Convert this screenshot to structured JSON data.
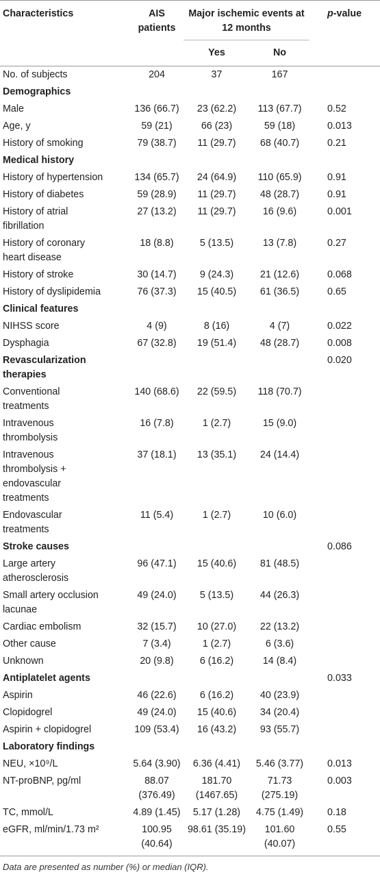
{
  "header": {
    "characteristics": "Characteristics",
    "ais": "AIS patients",
    "events": [
      "Major ischemic events at",
      "12 months"
    ],
    "yes": "Yes",
    "no": "No",
    "p_value": [
      "p",
      "-value"
    ]
  },
  "table": {
    "sections": [
      {
        "rows": [
          [
            "No. of subjects",
            "204",
            "37",
            "167"
          ]
        ]
      },
      {
        "title": "Demographics",
        "rows": [
          [
            "Male",
            "136 (66.7)",
            "23 (62.2)",
            "113 (67.7)",
            "0.52"
          ],
          [
            "Age, y",
            "59 (21)",
            "66 (23)",
            "59 (18)",
            "0.013"
          ],
          [
            "History of smoking",
            "79 (38.7)",
            "11 (29.7)",
            "68 (40.7)",
            "0.21"
          ]
        ]
      },
      {
        "title": "Medical history",
        "rows": [
          [
            "History of hypertension",
            "134 (65.7)",
            "24 (64.9)",
            "110 (65.9)",
            "0.91"
          ],
          [
            "History of diabetes",
            "59 (28.9)",
            "11 (29.7)",
            "48 (28.7)",
            "0.91"
          ],
          [
            [
              "History of atrial",
              "fibrillation"
            ],
            "27 (13.2)",
            "11 (29.7)",
            "16 (9.6)",
            "0.001"
          ],
          [
            [
              "History of coronary",
              "heart disease"
            ],
            "18 (8.8)",
            "5 (13.5)",
            "13 (7.8)",
            "0.27"
          ],
          [
            "History of stroke",
            "30 (14.7)",
            "9 (24.3)",
            "21 (12.6)",
            "0.068"
          ],
          [
            "History of dyslipidemia",
            "76 (37.3)",
            "15 (40.5)",
            "61 (36.5)",
            "0.65"
          ]
        ]
      },
      {
        "title": "Clinical features",
        "rows": [
          [
            "NIHSS score",
            "4 (9)",
            "8 (16)",
            "4 (7)",
            "0.022"
          ],
          [
            "Dysphagia",
            "67 (32.8)",
            "19 (51.4)",
            "48 (28.7)",
            "0.008"
          ]
        ]
      },
      {
        "title": [
          "Revascularization",
          "therapies"
        ],
        "p_value": "0.020",
        "rows": [
          [
            [
              "Conventional",
              "treatments"
            ],
            "140 (68.6)",
            "22 (59.5)",
            "118 (70.7)"
          ],
          [
            [
              "Intravenous",
              "thrombolysis"
            ],
            "16 (7.8)",
            "1 (2.7)",
            "15 (9.0)"
          ],
          [
            [
              "Intravenous",
              "thrombolysis +",
              "endovascular",
              "treatments"
            ],
            "37 (18.1)",
            "13 (35.1)",
            "24 (14.4)"
          ],
          [
            [
              "Endovascular",
              "treatments"
            ],
            "11 (5.4)",
            "1 (2.7)",
            "10 (6.0)"
          ]
        ]
      },
      {
        "title": "Stroke causes",
        "p_value": "0.086",
        "rows": [
          [
            [
              "Large artery",
              "atherosclerosis"
            ],
            "96 (47.1)",
            "15 (40.6)",
            "81 (48.5)"
          ],
          [
            [
              "Small artery occlusion",
              "lacunae"
            ],
            "49 (24.0)",
            "5 (13.5)",
            "44 (26.3)"
          ],
          [
            "Cardiac embolism",
            "32 (15.7)",
            "10 (27.0)",
            "22 (13.2)"
          ],
          [
            "Other cause",
            "7 (3.4)",
            "1 (2.7)",
            "6 (3.6)"
          ],
          [
            "Unknown",
            "20 (9.8)",
            "6 (16.2)",
            "14 (8.4)"
          ]
        ]
      },
      {
        "title": "Antiplatelet agents",
        "p_value": "0.033",
        "rows": [
          [
            "Aspirin",
            "46 (22.6)",
            "6 (16.2)",
            "40 (23.9)"
          ],
          [
            "Clopidogrel",
            "49 (24.0)",
            "15 (40.6)",
            "34 (20.4)"
          ],
          [
            "Aspirin + clopidogrel",
            "109 (53.4)",
            "16 (43.2)",
            "93 (55.7)"
          ]
        ]
      },
      {
        "title": "Laboratory findings",
        "rows": [
          [
            "NEU, ×10⁹/L",
            "5.64 (3.90)",
            "6.36 (4.41)",
            "5.46 (3.77)",
            "0.013"
          ],
          [
            "NT-proBNP, pg/ml",
            [
              "88.07",
              "(376.49)"
            ],
            [
              "181.70",
              "(1467.65)"
            ],
            [
              "71.73",
              "(275.19)"
            ],
            "0.003"
          ],
          [
            "TC, mmol/L",
            "4.89 (1.45)",
            "5.17 (1.28)",
            "4.75 (1.49)",
            "0.18"
          ],
          [
            "eGFR, ml/min/1.73 m²",
            [
              "100.95",
              "(40.64)"
            ],
            [
              "98.61 (35.19)"
            ],
            [
              "101.60",
              "(40.07)"
            ],
            "0.55"
          ]
        ]
      }
    ]
  },
  "footnote": "Data are presented as number (%) or median (IQR)."
}
